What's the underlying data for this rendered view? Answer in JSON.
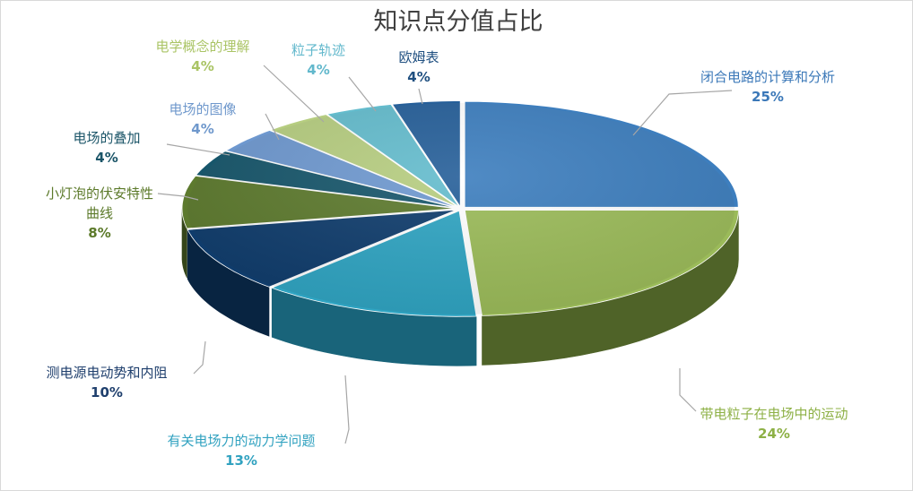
{
  "chart_data": {
    "type": "pie",
    "style": "3d-exploded",
    "title": "知识点分值占比",
    "slices": [
      {
        "label": "闭合电路的计算和分析",
        "value": 25,
        "value_label": "25%",
        "color": "#3d7ebe",
        "dark": "#234a72",
        "label_color": "#3b78b8"
      },
      {
        "label": "带电粒子在电场中的运动",
        "value": 24,
        "value_label": "24%",
        "color": "#9bbb59",
        "dark": "#4f6328",
        "label_color": "#8db045"
      },
      {
        "label": "有关电场力的动力学问题",
        "value": 13,
        "value_label": "13%",
        "color": "#2fa4c2",
        "dark": "#19647a",
        "label_color": "#31a2c0"
      },
      {
        "label": "测电源电动势和内阻",
        "value": 10,
        "value_label": "10%",
        "color": "#0f3c6c",
        "dark": "#082441",
        "label_color": "#1f3f6d"
      },
      {
        "label": "小灯泡的伏安特性曲线",
        "value": 8,
        "value_label": "8%",
        "color": "#5d7a2e",
        "dark": "#35461a",
        "label_color": "#5c7a2a"
      },
      {
        "label": "电场的叠加",
        "value": 4,
        "value_label": "4%",
        "color": "#17566b",
        "dark": "#0c3340",
        "label_color": "#1b5568"
      },
      {
        "label": "电场的图像",
        "value": 4,
        "value_label": "4%",
        "color": "#6e98cf",
        "dark": "#44648c",
        "label_color": "#6f98cc"
      },
      {
        "label": "电学概念的理解",
        "value": 4,
        "value_label": "4%",
        "color": "#b6cd80",
        "dark": "#7a8e4c",
        "label_color": "#aac465"
      },
      {
        "label": "粒子轨迹",
        "value": 4,
        "value_label": "4%",
        "color": "#64bccd",
        "dark": "#3b8494",
        "label_color": "#62b8cc"
      },
      {
        "label": "欧姆表",
        "value": 4,
        "value_label": "4%",
        "color": "#265f99",
        "dark": "#173b60",
        "label_color": "#1f4f80"
      }
    ],
    "legend": "none"
  }
}
